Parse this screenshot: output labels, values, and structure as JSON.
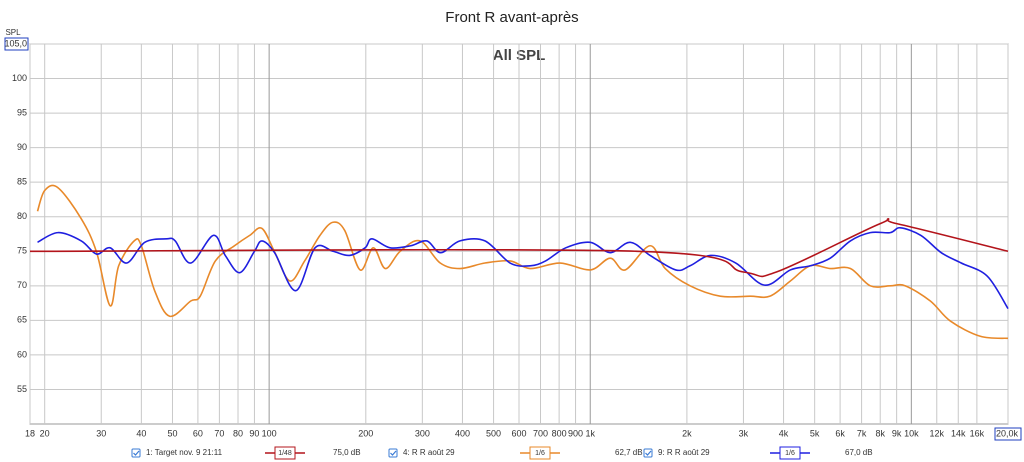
{
  "chart_data": {
    "type": "line",
    "title": "Front R avant-après",
    "subtitle": "All SPL",
    "y_label": "SPL",
    "xlog": true,
    "grid": true,
    "xlim": [
      18,
      20000
    ],
    "ylim": [
      50,
      105
    ],
    "xticks": [
      18,
      20,
      30,
      40,
      50,
      60,
      70,
      80,
      90,
      100,
      200,
      300,
      400,
      500,
      600,
      700,
      800,
      900,
      {
        "value": 1000,
        "label": "1k"
      },
      {
        "value": 2000,
        "label": "2k"
      },
      {
        "value": 3000,
        "label": "3k"
      },
      {
        "value": 4000,
        "label": "4k"
      },
      {
        "value": 5000,
        "label": "5k"
      },
      {
        "value": 6000,
        "label": "6k"
      },
      {
        "value": 7000,
        "label": "7k"
      },
      {
        "value": 8000,
        "label": "8k"
      },
      {
        "value": 9000,
        "label": "9k"
      },
      {
        "value": 10000,
        "label": "10k"
      },
      {
        "value": 12000,
        "label": "12k"
      },
      {
        "value": 14000,
        "label": "14k"
      },
      {
        "value": 16000,
        "label": "16k"
      },
      {
        "value": 20000,
        "label": "20,0k"
      }
    ],
    "yticks": [
      {
        "value": 105,
        "label": "105,0"
      },
      100,
      95,
      90,
      85,
      80,
      75,
      70,
      65,
      60,
      55
    ],
    "series": [
      {
        "name": "1: Target nov. 9 21:11",
        "color": "#b3141b",
        "smoothing": "1/48",
        "level": "75,0 dB",
        "x": [
          18,
          1400,
          3000,
          3800,
          8000,
          9000,
          20000
        ],
        "values": [
          75,
          75,
          72,
          72,
          79,
          79,
          75
        ]
      },
      {
        "name": "4: R R août 29",
        "color": "#e8892a",
        "smoothing": "1/6",
        "level": "62,7 dB",
        "x": [
          19,
          20,
          22,
          26,
          29,
          32,
          34,
          38,
          40,
          44,
          49,
          57,
          61,
          68,
          78,
          87,
          95,
          104,
          116,
          129,
          144,
          158,
          172,
          192,
          211,
          230,
          256,
          295,
          341,
          393,
          470,
          563,
          650,
          806,
          1000,
          1154,
          1285,
          1536,
          1712,
          2046,
          2540,
          3150,
          3630,
          4200,
          4850,
          5590,
          6460,
          7450,
          8600,
          9580,
          11460,
          13230,
          16400,
          20000
        ],
        "values": [
          80.8,
          83.8,
          84.2,
          79.7,
          74.9,
          67.1,
          72.9,
          76.5,
          75.8,
          69.3,
          65.6,
          67.8,
          68.5,
          73.6,
          75.8,
          77.3,
          78.3,
          74.9,
          70.7,
          73.6,
          77.3,
          79.2,
          78,
          72.3,
          75.5,
          72.5,
          75,
          76.5,
          73.3,
          72.5,
          73.3,
          73.6,
          72.5,
          73.3,
          72.3,
          74,
          72.3,
          75.8,
          72.5,
          70,
          68.5,
          68.5,
          68.5,
          70.7,
          72.9,
          72.5,
          72.5,
          70,
          70,
          70,
          67.8,
          64.9,
          62.7,
          62.4
        ]
      },
      {
        "name": "9: R R août 29",
        "color": "#1f1fe0",
        "smoothing": "1/6",
        "level": "67,0 dB",
        "x": [
          19,
          22,
          26,
          29,
          32,
          36,
          41,
          48,
          51,
          57,
          67,
          73,
          81,
          90,
          95,
          104,
          121,
          139,
          158,
          178,
          199,
          209,
          238,
          276,
          310,
          342,
          393,
          470,
          563,
          650,
          726,
          839,
          1000,
          1154,
          1332,
          1536,
          1846,
          2046,
          2370,
          2840,
          3490,
          4200,
          4850,
          5590,
          6460,
          7450,
          8600,
          9240,
          10710,
          12390,
          14300,
          17240,
          20000
        ],
        "values": [
          76.3,
          77.7,
          76.5,
          74.6,
          75.5,
          73.3,
          76.3,
          76.8,
          76.5,
          73.3,
          77.3,
          74.4,
          71.9,
          75,
          76.5,
          74.8,
          69.3,
          75.5,
          75,
          74.4,
          75.5,
          76.8,
          75.5,
          75.8,
          76.5,
          74.8,
          76.5,
          76.5,
          73.3,
          72.9,
          73.6,
          75.5,
          76.3,
          74.8,
          76.3,
          74.4,
          72.3,
          72.9,
          74.4,
          73.3,
          70.1,
          72.3,
          72.9,
          74,
          76.5,
          77.7,
          77.7,
          78.4,
          77.3,
          74.8,
          73.3,
          71.4,
          66.7
        ]
      }
    ]
  }
}
